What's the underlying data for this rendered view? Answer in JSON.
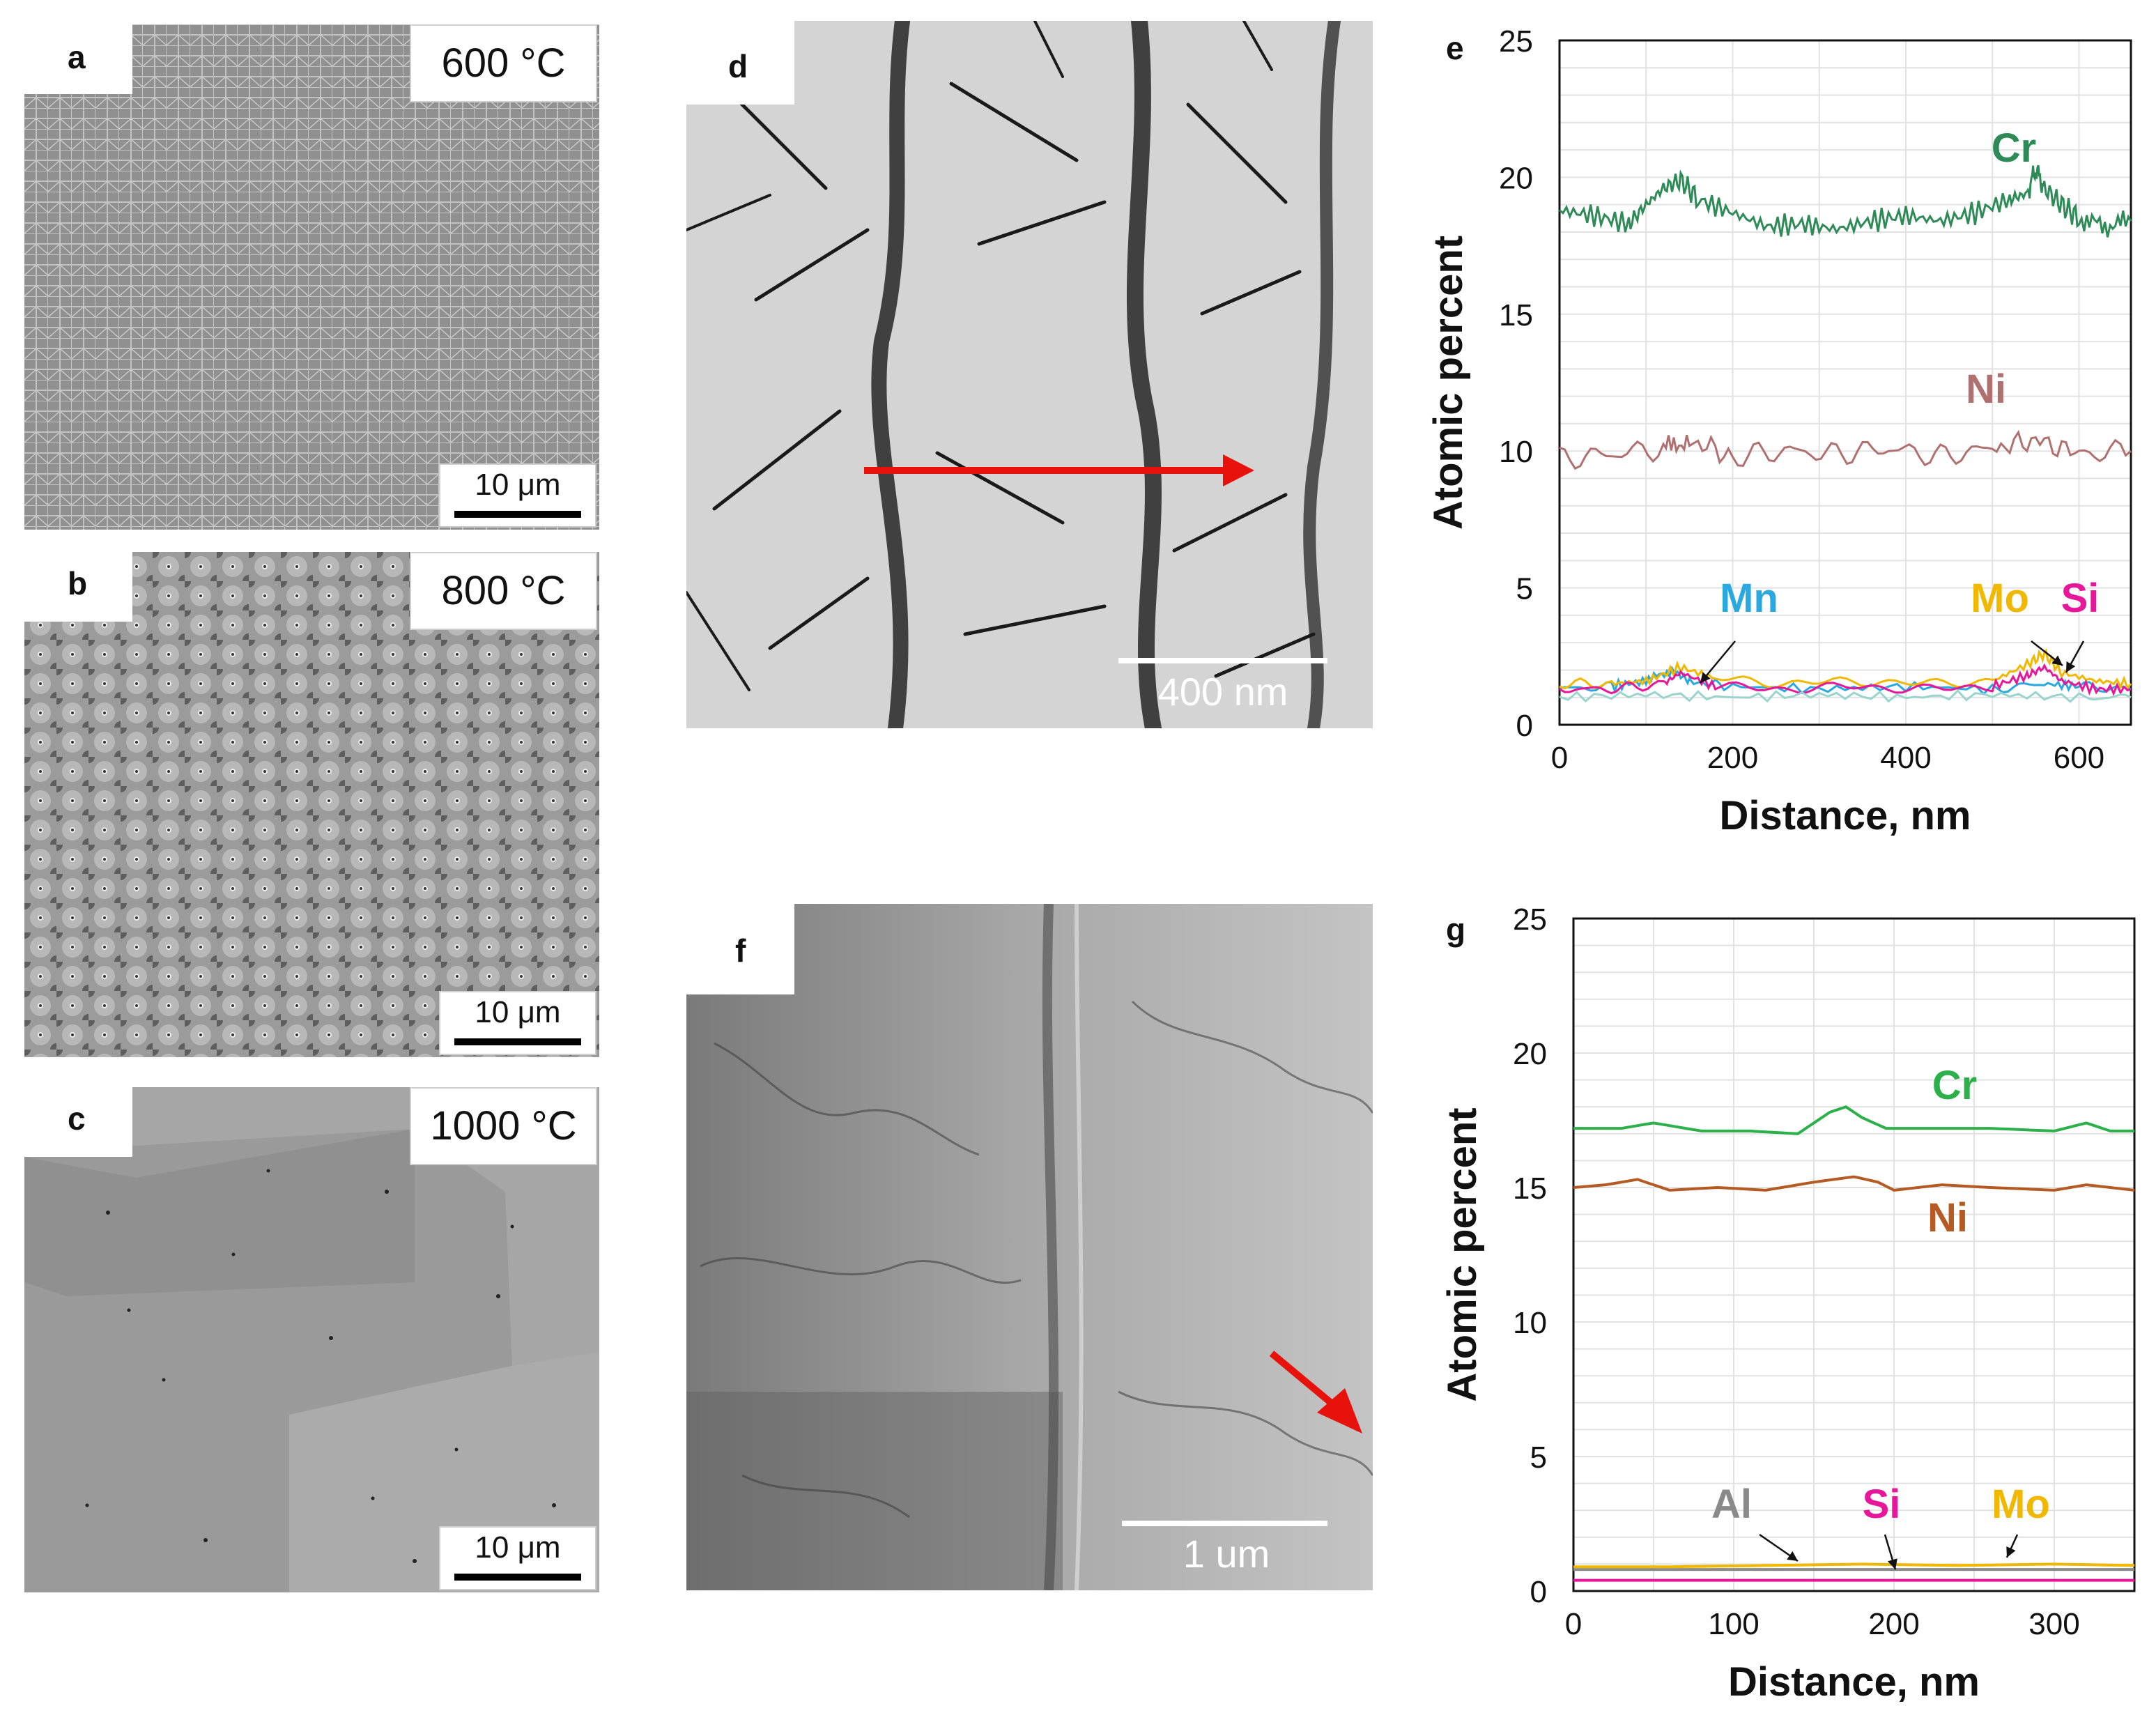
{
  "panels": {
    "a": {
      "letter": "a",
      "temperature": "600 °C",
      "scale": "10 μm"
    },
    "b": {
      "letter": "b",
      "temperature": "800 °C",
      "scale": "10 μm"
    },
    "c": {
      "letter": "c",
      "temperature": "1000 °C",
      "scale": "10 μm"
    },
    "d": {
      "letter": "d",
      "scale": "400 nm"
    },
    "f": {
      "letter": "f",
      "scale": "1 um"
    }
  },
  "colors": {
    "Cr_e": "#2e8b57",
    "Ni_e": "#b07070",
    "Cr_g": "#2bb04a",
    "Ni_g": "#b55a22",
    "Mn": "#2aa9e0",
    "Mo": "#f0b800",
    "Si": "#e6179b",
    "Al": "#8a8a8a",
    "arrow": "#e8120c"
  },
  "chart_data": [
    {
      "panel": "e",
      "type": "line",
      "xlabel": "Distance, nm",
      "ylabel": "Atomic percent",
      "xlim": [
        0,
        660
      ],
      "ylim": [
        0,
        25
      ],
      "xticks": [
        0,
        200,
        400,
        600
      ],
      "yticks": [
        0,
        5,
        10,
        15,
        20,
        25
      ],
      "grid": true,
      "series": [
        {
          "name": "Cr",
          "x": [
            0,
            40,
            80,
            100,
            120,
            140,
            160,
            200,
            240,
            280,
            320,
            360,
            400,
            440,
            480,
            520,
            540,
            550,
            560,
            580,
            600,
            630,
            660
          ],
          "values": [
            18.8,
            18.6,
            18.3,
            19.0,
            19.6,
            19.9,
            19.2,
            18.7,
            18.2,
            18.3,
            18.1,
            18.4,
            18.6,
            18.4,
            18.7,
            19.2,
            19.4,
            20.3,
            19.6,
            19.0,
            18.5,
            18.2,
            18.4
          ]
        },
        {
          "name": "Ni",
          "x": [
            0,
            60,
            120,
            150,
            200,
            260,
            320,
            380,
            440,
            500,
            550,
            600,
            660
          ],
          "values": [
            9.7,
            9.9,
            10.1,
            10.4,
            9.8,
            10.0,
            9.9,
            10.1,
            9.8,
            10.1,
            10.4,
            9.9,
            10.0
          ]
        },
        {
          "name": "Mn",
          "x": [
            0,
            60,
            100,
            130,
            150,
            200,
            300,
            400,
            500,
            560,
            600,
            660
          ],
          "values": [
            1.3,
            1.4,
            1.6,
            2.0,
            1.6,
            1.4,
            1.3,
            1.4,
            1.3,
            1.5,
            1.4,
            1.3
          ]
        },
        {
          "name": "Mo",
          "x": [
            0,
            60,
            100,
            140,
            180,
            260,
            340,
            420,
            500,
            540,
            560,
            580,
            620,
            660
          ],
          "values": [
            1.5,
            1.5,
            1.6,
            2.1,
            1.7,
            1.5,
            1.6,
            1.5,
            1.6,
            2.2,
            2.6,
            1.9,
            1.6,
            1.5
          ]
        },
        {
          "name": "Si",
          "x": [
            0,
            60,
            120,
            140,
            180,
            260,
            340,
            420,
            500,
            540,
            560,
            580,
            620,
            660
          ],
          "values": [
            1.3,
            1.3,
            1.5,
            1.9,
            1.4,
            1.3,
            1.4,
            1.3,
            1.4,
            1.8,
            2.1,
            1.6,
            1.3,
            1.3
          ]
        },
        {
          "name": "",
          "x": [
            0,
            100,
            200,
            300,
            400,
            500,
            600,
            660
          ],
          "values": [
            1.0,
            1.1,
            1.0,
            1.1,
            1.0,
            1.1,
            1.0,
            1.0
          ]
        }
      ],
      "labels": {
        "Cr": "Cr",
        "Ni": "Ni",
        "Mn": "Mn",
        "Mo": "Mo",
        "Si": "Si"
      }
    },
    {
      "panel": "g",
      "type": "line",
      "xlabel": "Distance, nm",
      "ylabel": "Atomic percent",
      "xlim": [
        0,
        350
      ],
      "ylim": [
        0,
        25
      ],
      "xticks": [
        0,
        100,
        200,
        300
      ],
      "yticks": [
        0,
        5,
        10,
        15,
        20,
        25
      ],
      "grid": true,
      "series": [
        {
          "name": "Cr",
          "x": [
            0,
            30,
            50,
            80,
            110,
            140,
            160,
            170,
            180,
            195,
            220,
            260,
            300,
            320,
            335,
            350
          ],
          "values": [
            17.2,
            17.2,
            17.4,
            17.1,
            17.1,
            17.0,
            17.8,
            18.0,
            17.6,
            17.2,
            17.2,
            17.2,
            17.1,
            17.4,
            17.1,
            17.1
          ]
        },
        {
          "name": "Ni",
          "x": [
            0,
            20,
            40,
            60,
            90,
            120,
            150,
            175,
            190,
            200,
            230,
            260,
            300,
            320,
            350
          ],
          "values": [
            15.0,
            15.1,
            15.3,
            14.9,
            15.0,
            14.9,
            15.2,
            15.4,
            15.2,
            14.9,
            15.1,
            15.0,
            14.9,
            15.1,
            14.9
          ]
        },
        {
          "name": "Al",
          "x": [
            0,
            100,
            200,
            300,
            350
          ],
          "values": [
            0.8,
            0.8,
            0.8,
            0.8,
            0.8
          ]
        },
        {
          "name": "Mo",
          "x": [
            0,
            60,
            120,
            180,
            240,
            300,
            350
          ],
          "values": [
            0.9,
            0.9,
            0.95,
            1.0,
            0.95,
            1.0,
            0.95
          ]
        },
        {
          "name": "Si",
          "x": [
            0,
            100,
            200,
            300,
            350
          ],
          "values": [
            0.4,
            0.4,
            0.4,
            0.4,
            0.4
          ]
        }
      ],
      "labels": {
        "Cr": "Cr",
        "Ni": "Ni",
        "Al": "Al",
        "Si": "Si",
        "Mo": "Mo"
      }
    }
  ]
}
